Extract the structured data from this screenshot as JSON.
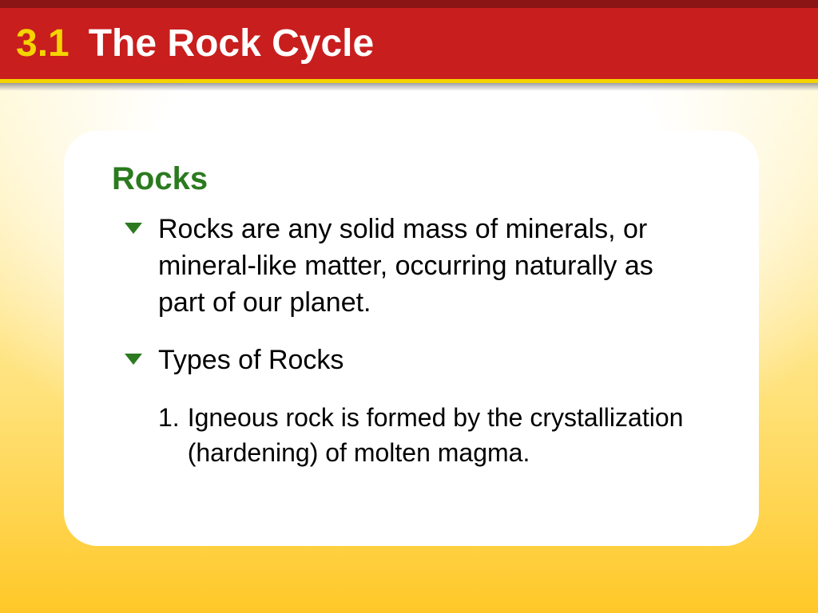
{
  "header": {
    "section_number": "3.1",
    "section_title": "The Rock Cycle",
    "band_color": "#c81e1e",
    "band_top_border": "#8a1515",
    "band_bottom_border": "#f5d400",
    "number_color": "#f5d400",
    "title_color": "#ffffff",
    "title_fontsize": 48
  },
  "body": {
    "gradient_top": "#fff7d0",
    "gradient_mid": "#ffe178",
    "gradient_bottom": "#ffc828"
  },
  "card": {
    "background": "#ffffff",
    "border_radius": 42,
    "title": "Rocks",
    "title_color": "#2b7a1f",
    "title_fontsize": 40,
    "bullet_color": "#2b7a1f",
    "text_color": "#000000",
    "body_fontsize": 34,
    "bullets": [
      {
        "text": "Rocks are any solid mass of minerals, or mineral-like matter, occurring naturally as part of our planet."
      },
      {
        "text": "Types of Rocks"
      }
    ],
    "sub_items": [
      {
        "number": "1.",
        "text": "Igneous rock is formed by the crystallization (hardening) of molten magma."
      }
    ]
  }
}
